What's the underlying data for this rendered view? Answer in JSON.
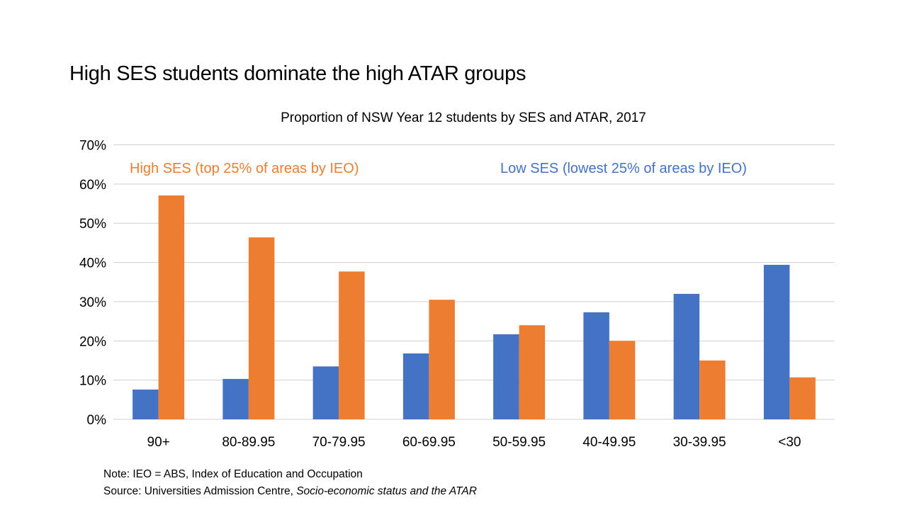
{
  "slide_title": "High SES students dominate the high ATAR groups",
  "notes": {
    "note": "Note: IEO = ABS, Index of Education and Occupation",
    "source_prefix": "Source: Universities Admission Centre, ",
    "source_title": "Socio-economic status and the ATAR"
  },
  "chart_data": {
    "type": "bar",
    "title": "Proportion of NSW Year 12 students by SES and ATAR, 2017",
    "xlabel": "",
    "ylabel": "",
    "categories": [
      "90+",
      "80-89.95",
      "70-79.95",
      "60-69.95",
      "50-59.95",
      "40-49.95",
      "30-39.95",
      "<30"
    ],
    "series": [
      {
        "name": "Low SES (lowest 25% of areas by IEO)",
        "color": "#4472C4",
        "values": [
          7.6,
          10.3,
          13.5,
          16.8,
          21.7,
          27.3,
          32.0,
          39.4
        ]
      },
      {
        "name": "High SES (top 25% of areas by IEO)",
        "color": "#ED7D31",
        "values": [
          57.1,
          46.4,
          37.7,
          30.5,
          24.0,
          20.0,
          15.0,
          10.7
        ]
      }
    ],
    "ylim": [
      0,
      70
    ],
    "yticks": [
      "0%",
      "10%",
      "20%",
      "30%",
      "40%",
      "50%",
      "60%",
      "70%"
    ],
    "grid": true,
    "legend": "inline labels at top"
  }
}
